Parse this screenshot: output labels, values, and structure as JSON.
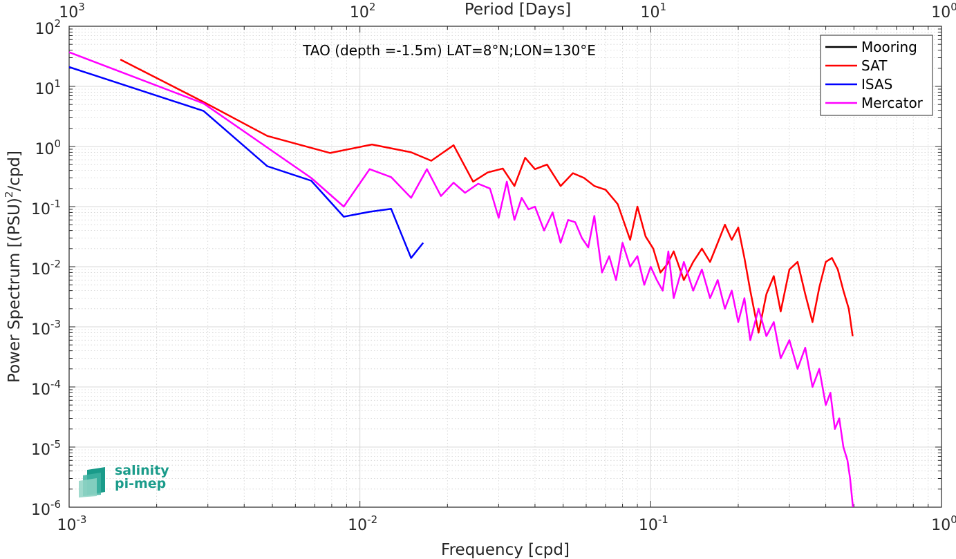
{
  "chart_data": {
    "type": "line",
    "title": "TAO (depth =-1.5m) LAT=8°N;LON=130°E",
    "xlabel": "Frequency [cpd]",
    "ylabel_main": "Power Spectrum [(PSU)",
    "ylabel_sup": "2",
    "ylabel_tail": "/cpd]",
    "top_xlabel": "Period [Days]",
    "x_scale": "log",
    "y_scale": "log",
    "xlim": [
      0.001,
      1
    ],
    "ylim": [
      1e-06,
      100
    ],
    "x_ticks": [
      {
        "base": "10",
        "exp": "-3"
      },
      {
        "base": "10",
        "exp": "-2"
      },
      {
        "base": "10",
        "exp": "-1"
      },
      {
        "base": "10",
        "exp": "0"
      }
    ],
    "y_ticks": [
      {
        "base": "10",
        "exp": "2"
      },
      {
        "base": "10",
        "exp": "1"
      },
      {
        "base": "10",
        "exp": "0"
      },
      {
        "base": "10",
        "exp": "-1"
      },
      {
        "base": "10",
        "exp": "-2"
      },
      {
        "base": "10",
        "exp": "-3"
      },
      {
        "base": "10",
        "exp": "-4"
      },
      {
        "base": "10",
        "exp": "-5"
      },
      {
        "base": "10",
        "exp": "-6"
      }
    ],
    "top_ticks": [
      {
        "base": "10",
        "exp": "3"
      },
      {
        "base": "10",
        "exp": "2"
      },
      {
        "base": "10",
        "exp": "1"
      },
      {
        "base": "10",
        "exp": "0"
      }
    ],
    "grid": true,
    "legend_position": "top-right",
    "series": [
      {
        "name": "Mooring",
        "color": "#000000",
        "x": [],
        "y": []
      },
      {
        "name": "SAT",
        "color": "#ff0000",
        "x": [
          0.0015,
          0.0029,
          0.0048,
          0.0079,
          0.011,
          0.015,
          0.0176,
          0.021,
          0.0245,
          0.0275,
          0.031,
          0.034,
          0.037,
          0.04,
          0.044,
          0.049,
          0.054,
          0.059,
          0.064,
          0.07,
          0.077,
          0.085,
          0.09,
          0.096,
          0.102,
          0.108,
          0.114,
          0.12,
          0.13,
          0.14,
          0.15,
          0.16,
          0.17,
          0.18,
          0.19,
          0.2,
          0.21,
          0.22,
          0.235,
          0.25,
          0.265,
          0.28,
          0.3,
          0.32,
          0.34,
          0.36,
          0.38,
          0.4,
          0.42,
          0.44,
          0.46,
          0.48,
          0.495
        ],
        "y": [
          28,
          5.5,
          1.5,
          0.78,
          1.08,
          0.8,
          0.58,
          1.05,
          0.26,
          0.37,
          0.43,
          0.22,
          0.65,
          0.42,
          0.5,
          0.22,
          0.36,
          0.3,
          0.22,
          0.19,
          0.11,
          0.028,
          0.1,
          0.032,
          0.02,
          0.008,
          0.011,
          0.018,
          0.006,
          0.012,
          0.02,
          0.012,
          0.025,
          0.05,
          0.028,
          0.045,
          0.014,
          0.004,
          0.0008,
          0.0035,
          0.007,
          0.0018,
          0.009,
          0.012,
          0.0035,
          0.0012,
          0.0045,
          0.012,
          0.014,
          0.009,
          0.004,
          0.002,
          0.0007
        ]
      },
      {
        "name": "ISAS",
        "color": "#0000ff",
        "x": [
          0.001,
          0.0029,
          0.0048,
          0.0068,
          0.0088,
          0.0108,
          0.0128,
          0.015,
          0.0165
        ],
        "y": [
          21,
          3.9,
          0.47,
          0.27,
          0.068,
          0.082,
          0.092,
          0.014,
          0.025
        ]
      },
      {
        "name": "Mercator",
        "color": "#ff00ff",
        "x": [
          0.001,
          0.0029,
          0.0068,
          0.0088,
          0.0108,
          0.0128,
          0.015,
          0.017,
          0.019,
          0.021,
          0.023,
          0.0255,
          0.028,
          0.03,
          0.032,
          0.034,
          0.036,
          0.038,
          0.04,
          0.043,
          0.046,
          0.049,
          0.052,
          0.055,
          0.058,
          0.061,
          0.064,
          0.068,
          0.072,
          0.076,
          0.08,
          0.085,
          0.09,
          0.095,
          0.1,
          0.105,
          0.11,
          0.115,
          0.12,
          0.13,
          0.14,
          0.15,
          0.16,
          0.17,
          0.18,
          0.19,
          0.2,
          0.21,
          0.22,
          0.235,
          0.25,
          0.265,
          0.28,
          0.3,
          0.32,
          0.34,
          0.36,
          0.38,
          0.4,
          0.415,
          0.43,
          0.445,
          0.46,
          0.475,
          0.485,
          0.492,
          0.496
        ],
        "y": [
          37,
          5.2,
          0.3,
          0.1,
          0.42,
          0.31,
          0.14,
          0.42,
          0.15,
          0.25,
          0.17,
          0.24,
          0.2,
          0.065,
          0.26,
          0.06,
          0.14,
          0.09,
          0.1,
          0.04,
          0.08,
          0.025,
          0.06,
          0.055,
          0.03,
          0.021,
          0.07,
          0.008,
          0.015,
          0.006,
          0.025,
          0.01,
          0.015,
          0.005,
          0.01,
          0.006,
          0.004,
          0.018,
          0.003,
          0.012,
          0.004,
          0.009,
          0.003,
          0.006,
          0.002,
          0.004,
          0.0012,
          0.003,
          0.0006,
          0.002,
          0.0007,
          0.0012,
          0.0003,
          0.0006,
          0.0002,
          0.00045,
          0.0001,
          0.0002,
          5e-05,
          8e-05,
          2e-05,
          3e-05,
          1e-05,
          6e-06,
          3e-06,
          1.5e-06,
          1e-06
        ]
      }
    ]
  },
  "logo": {
    "line1": "salinity",
    "line2": "pi-mep"
  }
}
